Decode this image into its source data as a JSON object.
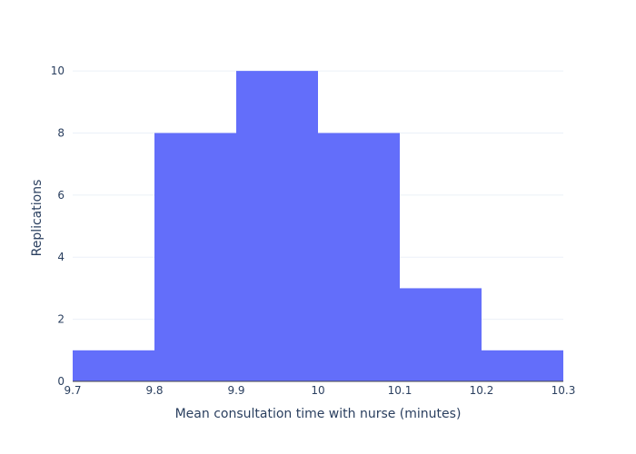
{
  "chart_data": {
    "type": "bar",
    "title": "",
    "xlabel": "Mean consultation time with nurse (minutes)",
    "ylabel": "Replications",
    "bins": [
      {
        "start": 9.7,
        "end": 9.8,
        "count": 1
      },
      {
        "start": 9.8,
        "end": 9.9,
        "count": 8
      },
      {
        "start": 9.9,
        "end": 10.0,
        "count": 10
      },
      {
        "start": 10.0,
        "end": 10.1,
        "count": 8
      },
      {
        "start": 10.1,
        "end": 10.2,
        "count": 3
      },
      {
        "start": 10.2,
        "end": 10.3,
        "count": 1
      }
    ],
    "xlim": [
      9.7,
      10.3
    ],
    "ylim": [
      0,
      10.53
    ],
    "x_ticks": [
      "9.7",
      "9.8",
      "9.9",
      "10",
      "10.1",
      "10.2",
      "10.3"
    ],
    "y_ticks": [
      "0",
      "2",
      "4",
      "6",
      "8",
      "10"
    ],
    "bar_color": "#636efa",
    "grid_color": "#ebf0f8",
    "grid": true,
    "legend": "none"
  }
}
